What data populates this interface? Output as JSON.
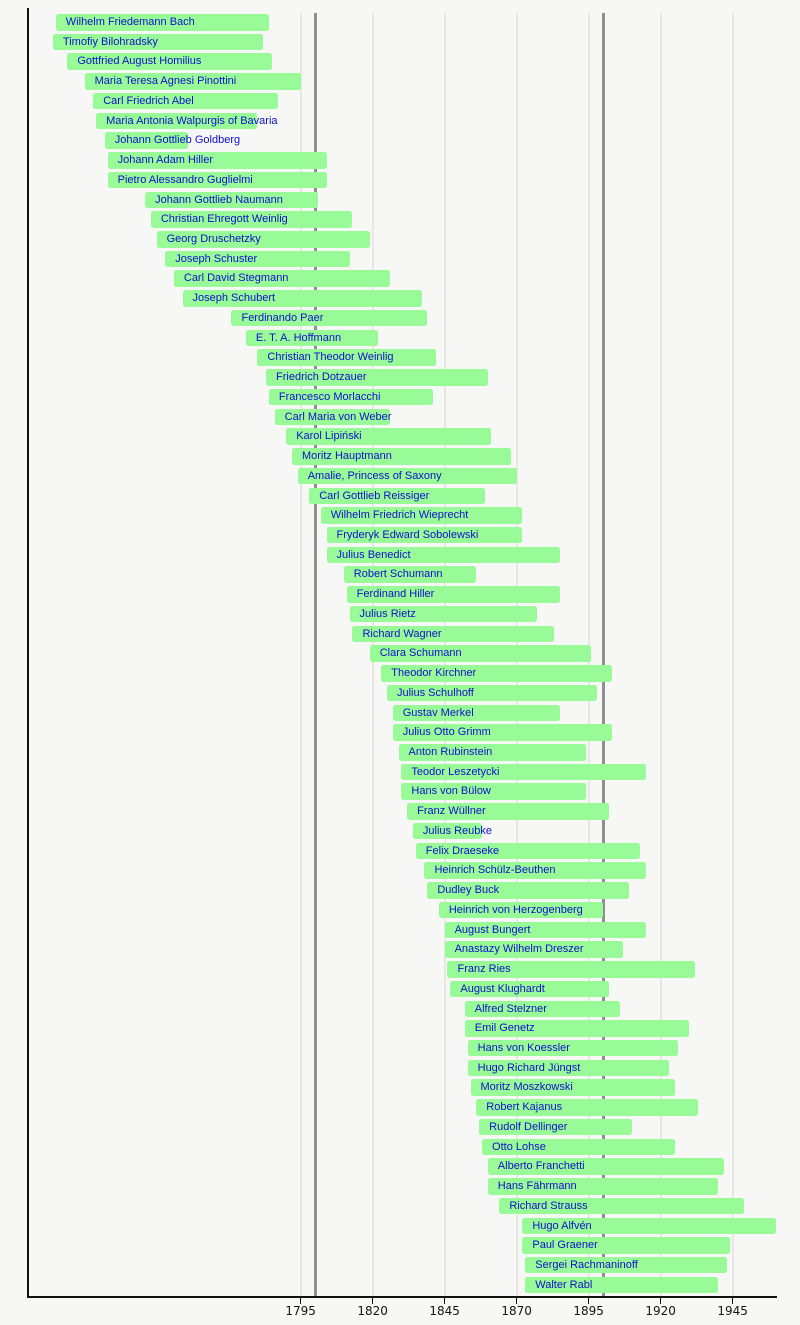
{
  "chart_data": {
    "type": "bar",
    "subtype": "horizontal-lifespan-timeline",
    "title": "",
    "xlabel": "",
    "ylabel": "",
    "x_axis": {
      "range": [
        1700,
        1960
      ],
      "tick_years": [
        1795,
        1820,
        1845,
        1870,
        1895,
        1920,
        1945
      ],
      "century_lines": [
        1800,
        1900
      ],
      "grid": "on"
    },
    "legend": "none",
    "bars": [
      {
        "name": "Wilhelm Friedemann Bach",
        "start": 1710,
        "end": 1784
      },
      {
        "name": "Timofiy Bilohradsky",
        "start": 1709,
        "end": 1782
      },
      {
        "name": "Gottfried August Homilius",
        "start": 1714,
        "end": 1785
      },
      {
        "name": "Maria Teresa Agnesi Pinottini",
        "start": 1720,
        "end": 1795
      },
      {
        "name": "Carl Friedrich Abel",
        "start": 1723,
        "end": 1787
      },
      {
        "name": "Maria Antonia Walpurgis of Bavaria",
        "start": 1724,
        "end": 1780
      },
      {
        "name": "Johann Gottlieb Goldberg",
        "start": 1727,
        "end": 1756
      },
      {
        "name": "Johann Adam Hiller",
        "start": 1728,
        "end": 1804
      },
      {
        "name": "Pietro Alessandro Guglielmi",
        "start": 1728,
        "end": 1804
      },
      {
        "name": "Johann Gottlieb Naumann",
        "start": 1741,
        "end": 1801
      },
      {
        "name": "Christian Ehregott Weinlig",
        "start": 1743,
        "end": 1813
      },
      {
        "name": "Georg Druschetzky",
        "start": 1745,
        "end": 1819
      },
      {
        "name": "Joseph Schuster",
        "start": 1748,
        "end": 1812
      },
      {
        "name": "Carl David Stegmann",
        "start": 1751,
        "end": 1826
      },
      {
        "name": "Joseph Schubert",
        "start": 1754,
        "end": 1837
      },
      {
        "name": "Ferdinando Paer",
        "start": 1771,
        "end": 1839
      },
      {
        "name": "E. T. A. Hoffmann",
        "start": 1776,
        "end": 1822
      },
      {
        "name": "Christian Theodor Weinlig",
        "start": 1780,
        "end": 1842
      },
      {
        "name": "Friedrich Dotzauer",
        "start": 1783,
        "end": 1860
      },
      {
        "name": "Francesco Morlacchi",
        "start": 1784,
        "end": 1841
      },
      {
        "name": "Carl Maria von Weber",
        "start": 1786,
        "end": 1826
      },
      {
        "name": "Karol Lipiński",
        "start": 1790,
        "end": 1861
      },
      {
        "name": "Moritz Hauptmann",
        "start": 1792,
        "end": 1868
      },
      {
        "name": "Amalie, Princess of Saxony",
        "start": 1794,
        "end": 1870
      },
      {
        "name": "Carl Gottlieb Reissiger",
        "start": 1798,
        "end": 1859
      },
      {
        "name": "Wilhelm Friedrich Wieprecht",
        "start": 1802,
        "end": 1872
      },
      {
        "name": "Fryderyk Edward Sobolewski",
        "start": 1804,
        "end": 1872
      },
      {
        "name": "Julius Benedict",
        "start": 1804,
        "end": 1885
      },
      {
        "name": "Robert Schumann",
        "start": 1810,
        "end": 1856
      },
      {
        "name": "Ferdinand Hiller",
        "start": 1811,
        "end": 1885
      },
      {
        "name": "Julius Rietz",
        "start": 1812,
        "end": 1877
      },
      {
        "name": "Richard Wagner",
        "start": 1813,
        "end": 1883
      },
      {
        "name": "Clara Schumann",
        "start": 1819,
        "end": 1896
      },
      {
        "name": "Theodor Kirchner",
        "start": 1823,
        "end": 1903
      },
      {
        "name": "Julius Schulhoff",
        "start": 1825,
        "end": 1898
      },
      {
        "name": "Gustav Merkel",
        "start": 1827,
        "end": 1885
      },
      {
        "name": "Julius Otto Grimm",
        "start": 1827,
        "end": 1903
      },
      {
        "name": "Anton Rubinstein",
        "start": 1829,
        "end": 1894
      },
      {
        "name": "Teodor Leszetycki",
        "start": 1830,
        "end": 1915
      },
      {
        "name": "Hans von Bülow",
        "start": 1830,
        "end": 1894
      },
      {
        "name": "Franz Wüllner",
        "start": 1832,
        "end": 1902
      },
      {
        "name": "Julius Reubke",
        "start": 1834,
        "end": 1858
      },
      {
        "name": "Felix Draeseke",
        "start": 1835,
        "end": 1913
      },
      {
        "name": "Heinrich Schülz-Beuthen",
        "start": 1838,
        "end": 1915
      },
      {
        "name": "Dudley Buck",
        "start": 1839,
        "end": 1909
      },
      {
        "name": "Heinrich von Herzogenberg",
        "start": 1843,
        "end": 1900
      },
      {
        "name": "August Bungert",
        "start": 1845,
        "end": 1915
      },
      {
        "name": "Anastazy Wilhelm Dreszer",
        "start": 1845,
        "end": 1907
      },
      {
        "name": "Franz Ries",
        "start": 1846,
        "end": 1932
      },
      {
        "name": "August Klughardt",
        "start": 1847,
        "end": 1902
      },
      {
        "name": "Alfred Stelzner",
        "start": 1852,
        "end": 1906
      },
      {
        "name": "Emil Genetz",
        "start": 1852,
        "end": 1930
      },
      {
        "name": "Hans von Koessler",
        "start": 1853,
        "end": 1926
      },
      {
        "name": "Hugo Richard Jüngst",
        "start": 1853,
        "end": 1923
      },
      {
        "name": "Moritz Moszkowski",
        "start": 1854,
        "end": 1925
      },
      {
        "name": "Robert Kajanus",
        "start": 1856,
        "end": 1933
      },
      {
        "name": "Rudolf Dellinger",
        "start": 1857,
        "end": 1910
      },
      {
        "name": "Otto Lohse",
        "start": 1858,
        "end": 1925
      },
      {
        "name": "Alberto Franchetti",
        "start": 1860,
        "end": 1942
      },
      {
        "name": "Hans Fährmann",
        "start": 1860,
        "end": 1940
      },
      {
        "name": "Richard Strauss",
        "start": 1864,
        "end": 1949
      },
      {
        "name": "Hugo Alfvén",
        "start": 1872,
        "end": 1960
      },
      {
        "name": "Paul Graener",
        "start": 1872,
        "end": 1944
      },
      {
        "name": "Sergei Rachmaninoff",
        "start": 1873,
        "end": 1943
      },
      {
        "name": "Walter Rabl",
        "start": 1873,
        "end": 1940
      }
    ]
  },
  "style": {
    "background": "#f7f7f5",
    "bar_fill": "#98fb98",
    "bar_label_color": "#0f0fcc",
    "axis_color": "#111111",
    "tick_label_color": "#151515",
    "gridline_light": "#e7e7e4",
    "gridline_dark": "#8f8f8f"
  }
}
